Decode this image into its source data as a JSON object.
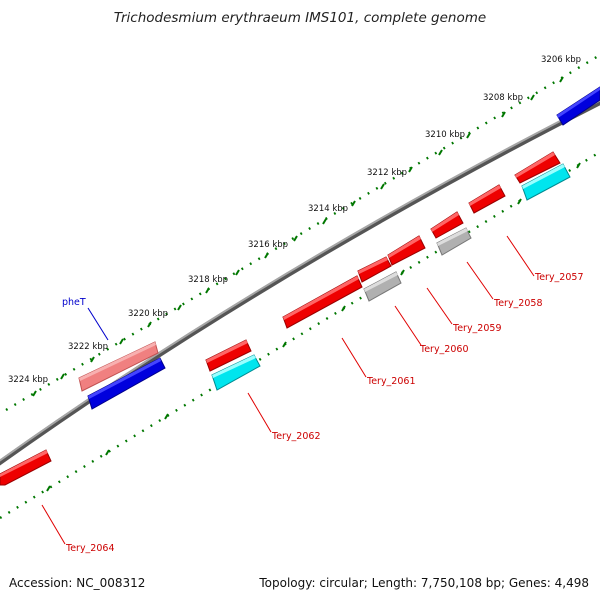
{
  "title": "Trichodesmium erythraeum IMS101, complete genome",
  "footer": {
    "accession": "Accession: NC_008312",
    "summary": "Topology: circular; Length: 7,750,108 bp; Genes: 4,498"
  },
  "scale_labels": [
    "3206 kbp",
    "3208 kbp",
    "3210 kbp",
    "3212 kbp",
    "3214 kbp",
    "3216 kbp",
    "3218 kbp",
    "3220 kbp",
    "3222 kbp",
    "3224 kbp"
  ],
  "genes": [
    {
      "name": "Tery_2057",
      "strand": "+",
      "color": "#ee0000",
      "label_color": "#cc0000"
    },
    {
      "name": "Tery_2058",
      "strand": "+",
      "color": "#ee0000",
      "label_color": "#cc0000"
    },
    {
      "name": "Tery_2059",
      "strand": "+",
      "color": "#ee0000",
      "label_color": "#cc0000"
    },
    {
      "name": "Tery_2060",
      "strand": "+",
      "color": "#ee0000",
      "label_color": "#cc0000"
    },
    {
      "name": "Tery_2061",
      "strand": "+",
      "color": "#ee0000",
      "label_color": "#cc0000"
    },
    {
      "name": "Tery_2062",
      "strand": "+",
      "color": "#ee0000",
      "label_color": "#cc0000"
    },
    {
      "name": "Tery_2064",
      "strand": "+",
      "color": "#ee0000",
      "label_color": "#cc0000"
    },
    {
      "name": "pheT",
      "strand": "-",
      "color": "#f08080",
      "label_color": "#0000cc"
    }
  ],
  "colors": {
    "cds": "#ee0000",
    "cds_feature": "#00e5ee",
    "misc_feature": "#b0b0b0",
    "rna": "#f08080",
    "reverse_gene": "#0000dd",
    "backbone": "#808080",
    "scale_ticks": "#007700"
  }
}
